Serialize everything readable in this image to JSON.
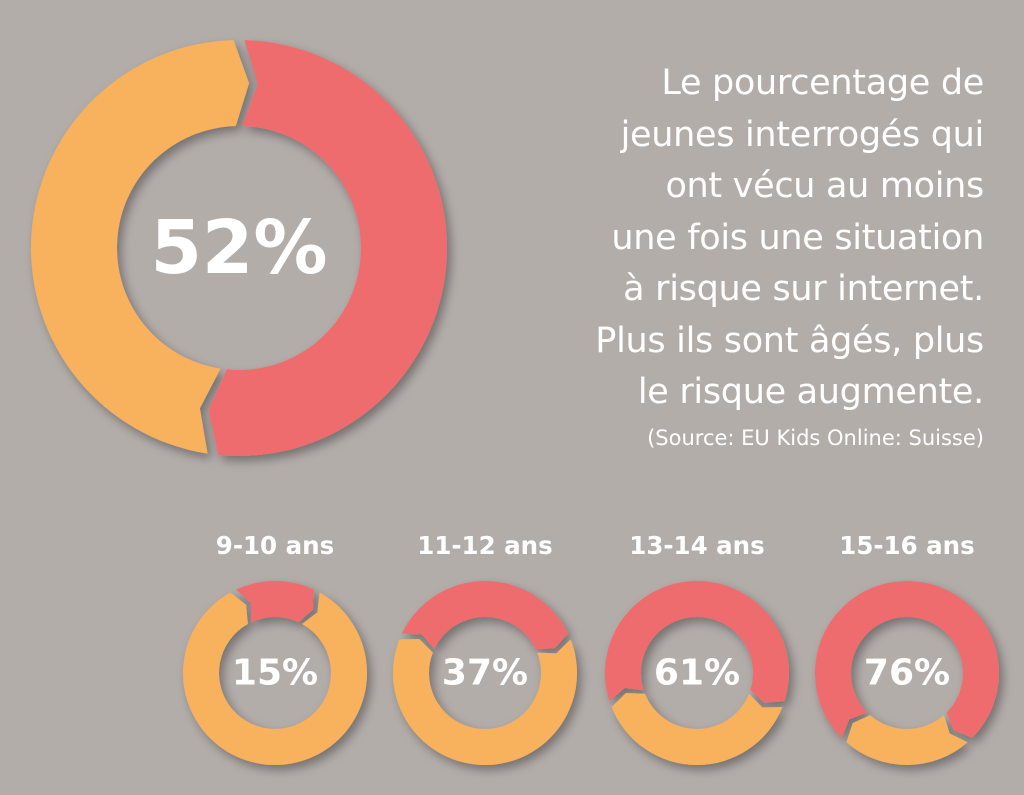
{
  "colors": {
    "background": "#b3adaa",
    "at_risk": "#ee6c6e",
    "not_at_risk": "#f8b15d",
    "text": "#ffffff"
  },
  "headline_lines": [
    "Le pourcentage de",
    "jeunes interrogés qui",
    "ont vécu au moins",
    "une fois une situation",
    "à risque sur internet.",
    "Plus ils sont âgés, plus",
    "le risque augmente."
  ],
  "source": "(Source: EU Kids Online: Suisse)",
  "chart_data": [
    {
      "type": "pie",
      "variant": "donut",
      "categories": [
        ""
      ],
      "values": [
        52
      ],
      "center_label": "52%"
    },
    {
      "type": "pie",
      "variant": "donut",
      "categories": [
        "9-10 ans",
        "11-12 ans",
        "13-14 ans",
        "15-16 ans"
      ],
      "values": [
        15,
        37,
        61,
        76
      ],
      "center_labels": [
        "15%",
        "37%",
        "61%",
        "76%"
      ]
    }
  ]
}
